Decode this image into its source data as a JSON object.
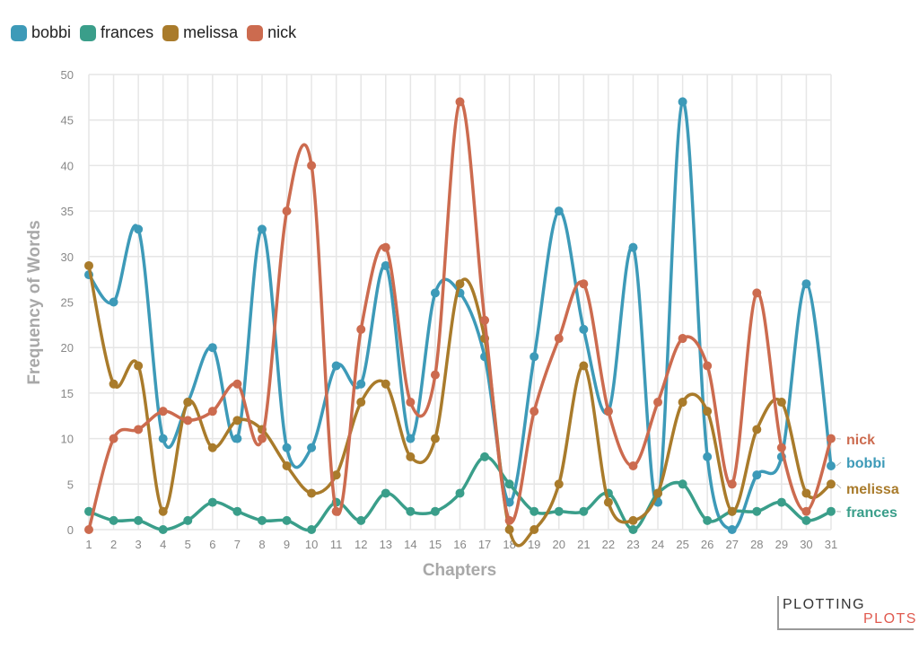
{
  "chart_data": {
    "type": "line",
    "xlabel": "Chapters",
    "ylabel": "Frequency of Words",
    "ylim": [
      0,
      50
    ],
    "y_ticks": [
      0,
      5,
      10,
      15,
      20,
      25,
      30,
      35,
      40,
      45,
      50
    ],
    "x": [
      1,
      2,
      3,
      4,
      5,
      6,
      7,
      8,
      9,
      10,
      11,
      12,
      13,
      14,
      15,
      16,
      17,
      18,
      19,
      20,
      21,
      22,
      23,
      24,
      25,
      26,
      27,
      28,
      29,
      30,
      31
    ],
    "grid": true,
    "legend_placement": "top-left",
    "series": [
      {
        "name": "bobbi",
        "color": "#3d9ab8",
        "values": [
          28,
          25,
          33,
          10,
          14,
          20,
          10,
          33,
          9,
          9,
          18,
          16,
          29,
          10,
          26,
          26,
          19,
          3,
          19,
          35,
          22,
          13,
          31,
          3,
          47,
          8,
          0,
          6,
          8,
          27,
          7
        ]
      },
      {
        "name": "frances",
        "color": "#3a9e8a",
        "values": [
          2,
          1,
          1,
          0,
          1,
          3,
          2,
          1,
          1,
          0,
          3,
          1,
          4,
          2,
          2,
          4,
          8,
          5,
          2,
          2,
          2,
          4,
          0,
          4,
          5,
          1,
          2,
          2,
          3,
          1,
          2
        ]
      },
      {
        "name": "melissa",
        "color": "#a97b2b",
        "values": [
          29,
          16,
          18,
          2,
          14,
          9,
          12,
          11,
          7,
          4,
          6,
          14,
          16,
          8,
          10,
          27,
          21,
          0,
          0,
          5,
          18,
          3,
          1,
          4,
          14,
          13,
          2,
          11,
          14,
          4,
          5
        ]
      },
      {
        "name": "nick",
        "color": "#cc6b4f",
        "values": [
          0,
          10,
          11,
          13,
          12,
          13,
          16,
          10,
          35,
          40,
          2,
          22,
          31,
          14,
          17,
          47,
          23,
          1,
          13,
          21,
          27,
          13,
          7,
          14,
          21,
          18,
          5,
          26,
          9,
          2,
          10
        ]
      }
    ],
    "end_labels": [
      {
        "name": "nick",
        "color": "#cc6b4f"
      },
      {
        "name": "bobbi",
        "color": "#3d9ab8"
      },
      {
        "name": "melissa",
        "color": "#a97b2b"
      },
      {
        "name": "frances",
        "color": "#3a9e8a"
      }
    ]
  },
  "watermark": {
    "line1": "PLOTTING",
    "line2": "PLOTS"
  }
}
